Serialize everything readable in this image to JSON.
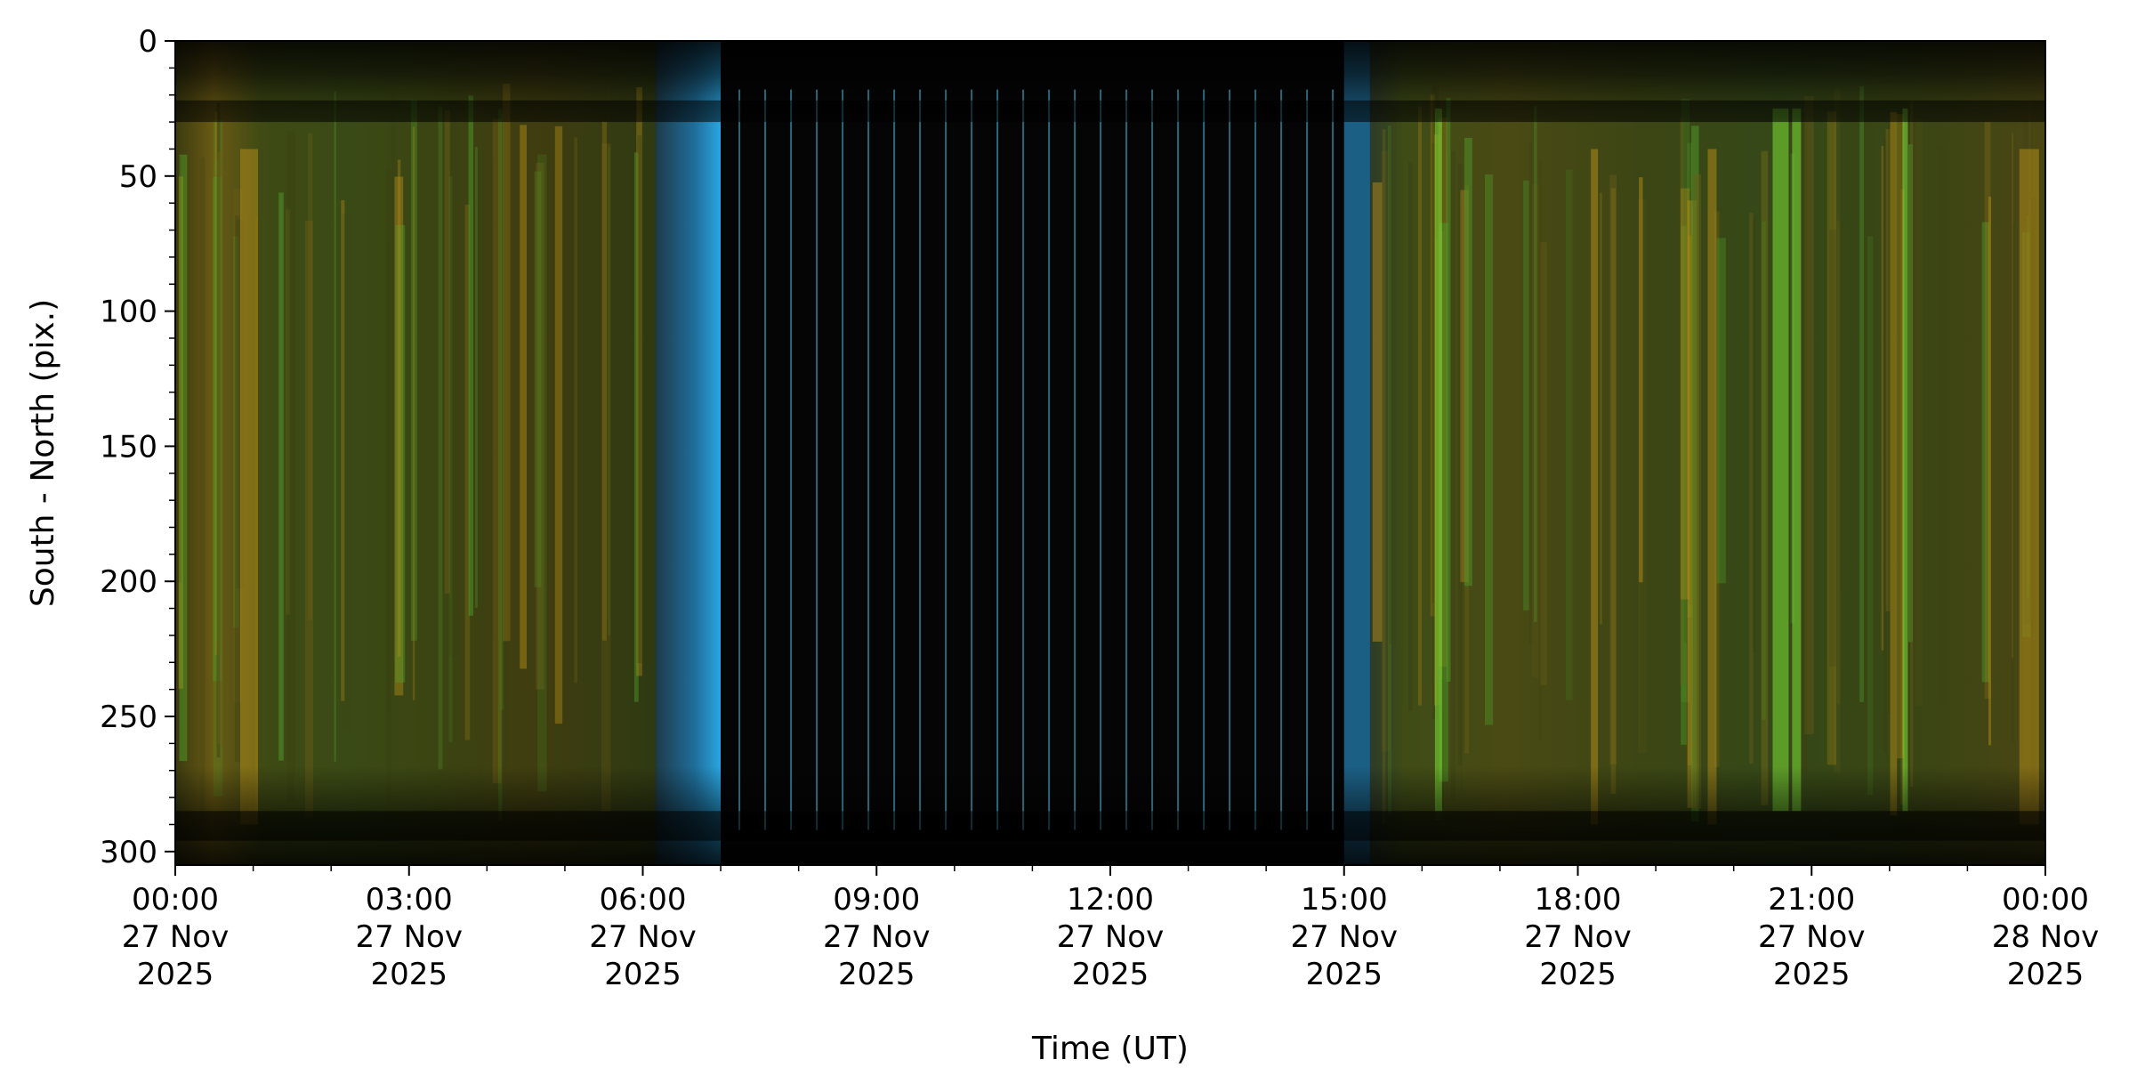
{
  "chart_data": {
    "type": "heatmap",
    "title": "",
    "xlabel": "Time (UT)",
    "ylabel": "South - North (pix.)",
    "xlim": [
      "2025-11-27T00:00",
      "2025-11-28T00:00"
    ],
    "ylim": [
      305,
      0
    ],
    "y_inverted": true,
    "x_ticks": [
      {
        "value": "2025-11-27T00:00",
        "lines": [
          "00:00",
          "27 Nov",
          "2025"
        ]
      },
      {
        "value": "2025-11-27T03:00",
        "lines": [
          "03:00",
          "27 Nov",
          "2025"
        ]
      },
      {
        "value": "2025-11-27T06:00",
        "lines": [
          "06:00",
          "27 Nov",
          "2025"
        ]
      },
      {
        "value": "2025-11-27T09:00",
        "lines": [
          "09:00",
          "27 Nov",
          "2025"
        ]
      },
      {
        "value": "2025-11-27T12:00",
        "lines": [
          "12:00",
          "27 Nov",
          "2025"
        ]
      },
      {
        "value": "2025-11-27T15:00",
        "lines": [
          "15:00",
          "27 Nov",
          "2025"
        ]
      },
      {
        "value": "2025-11-27T18:00",
        "lines": [
          "18:00",
          "27 Nov",
          "2025"
        ]
      },
      {
        "value": "2025-11-27T21:00",
        "lines": [
          "21:00",
          "27 Nov",
          "2025"
        ]
      },
      {
        "value": "2025-11-28T00:00",
        "lines": [
          "00:00",
          "28 Nov",
          "2025"
        ]
      }
    ],
    "y_ticks": [
      0,
      50,
      100,
      150,
      200,
      250,
      300
    ],
    "grid": false,
    "legend": "none",
    "description": "keogram",
    "colors": {
      "daytime_background": "#050505",
      "dawn_dusk_edge": "#2a9fd6",
      "aurora_yellow": "#b8901a",
      "aurora_green": "#4fa02a",
      "aurora_bright_green": "#7ee038",
      "olive": "#3a3f12"
    },
    "segments": [
      {
        "from": "2025-11-27T00:00",
        "to": "2025-11-27T06:10",
        "kind": "night"
      },
      {
        "from": "2025-11-27T06:10",
        "to": "2025-11-27T07:00",
        "kind": "twilight"
      },
      {
        "from": "2025-11-27T07:00",
        "to": "2025-11-27T15:00",
        "kind": "day"
      },
      {
        "from": "2025-11-27T15:00",
        "to": "2025-11-27T15:20",
        "kind": "twilight"
      },
      {
        "from": "2025-11-27T15:20",
        "to": "2025-11-28T00:00",
        "kind": "night"
      }
    ]
  }
}
